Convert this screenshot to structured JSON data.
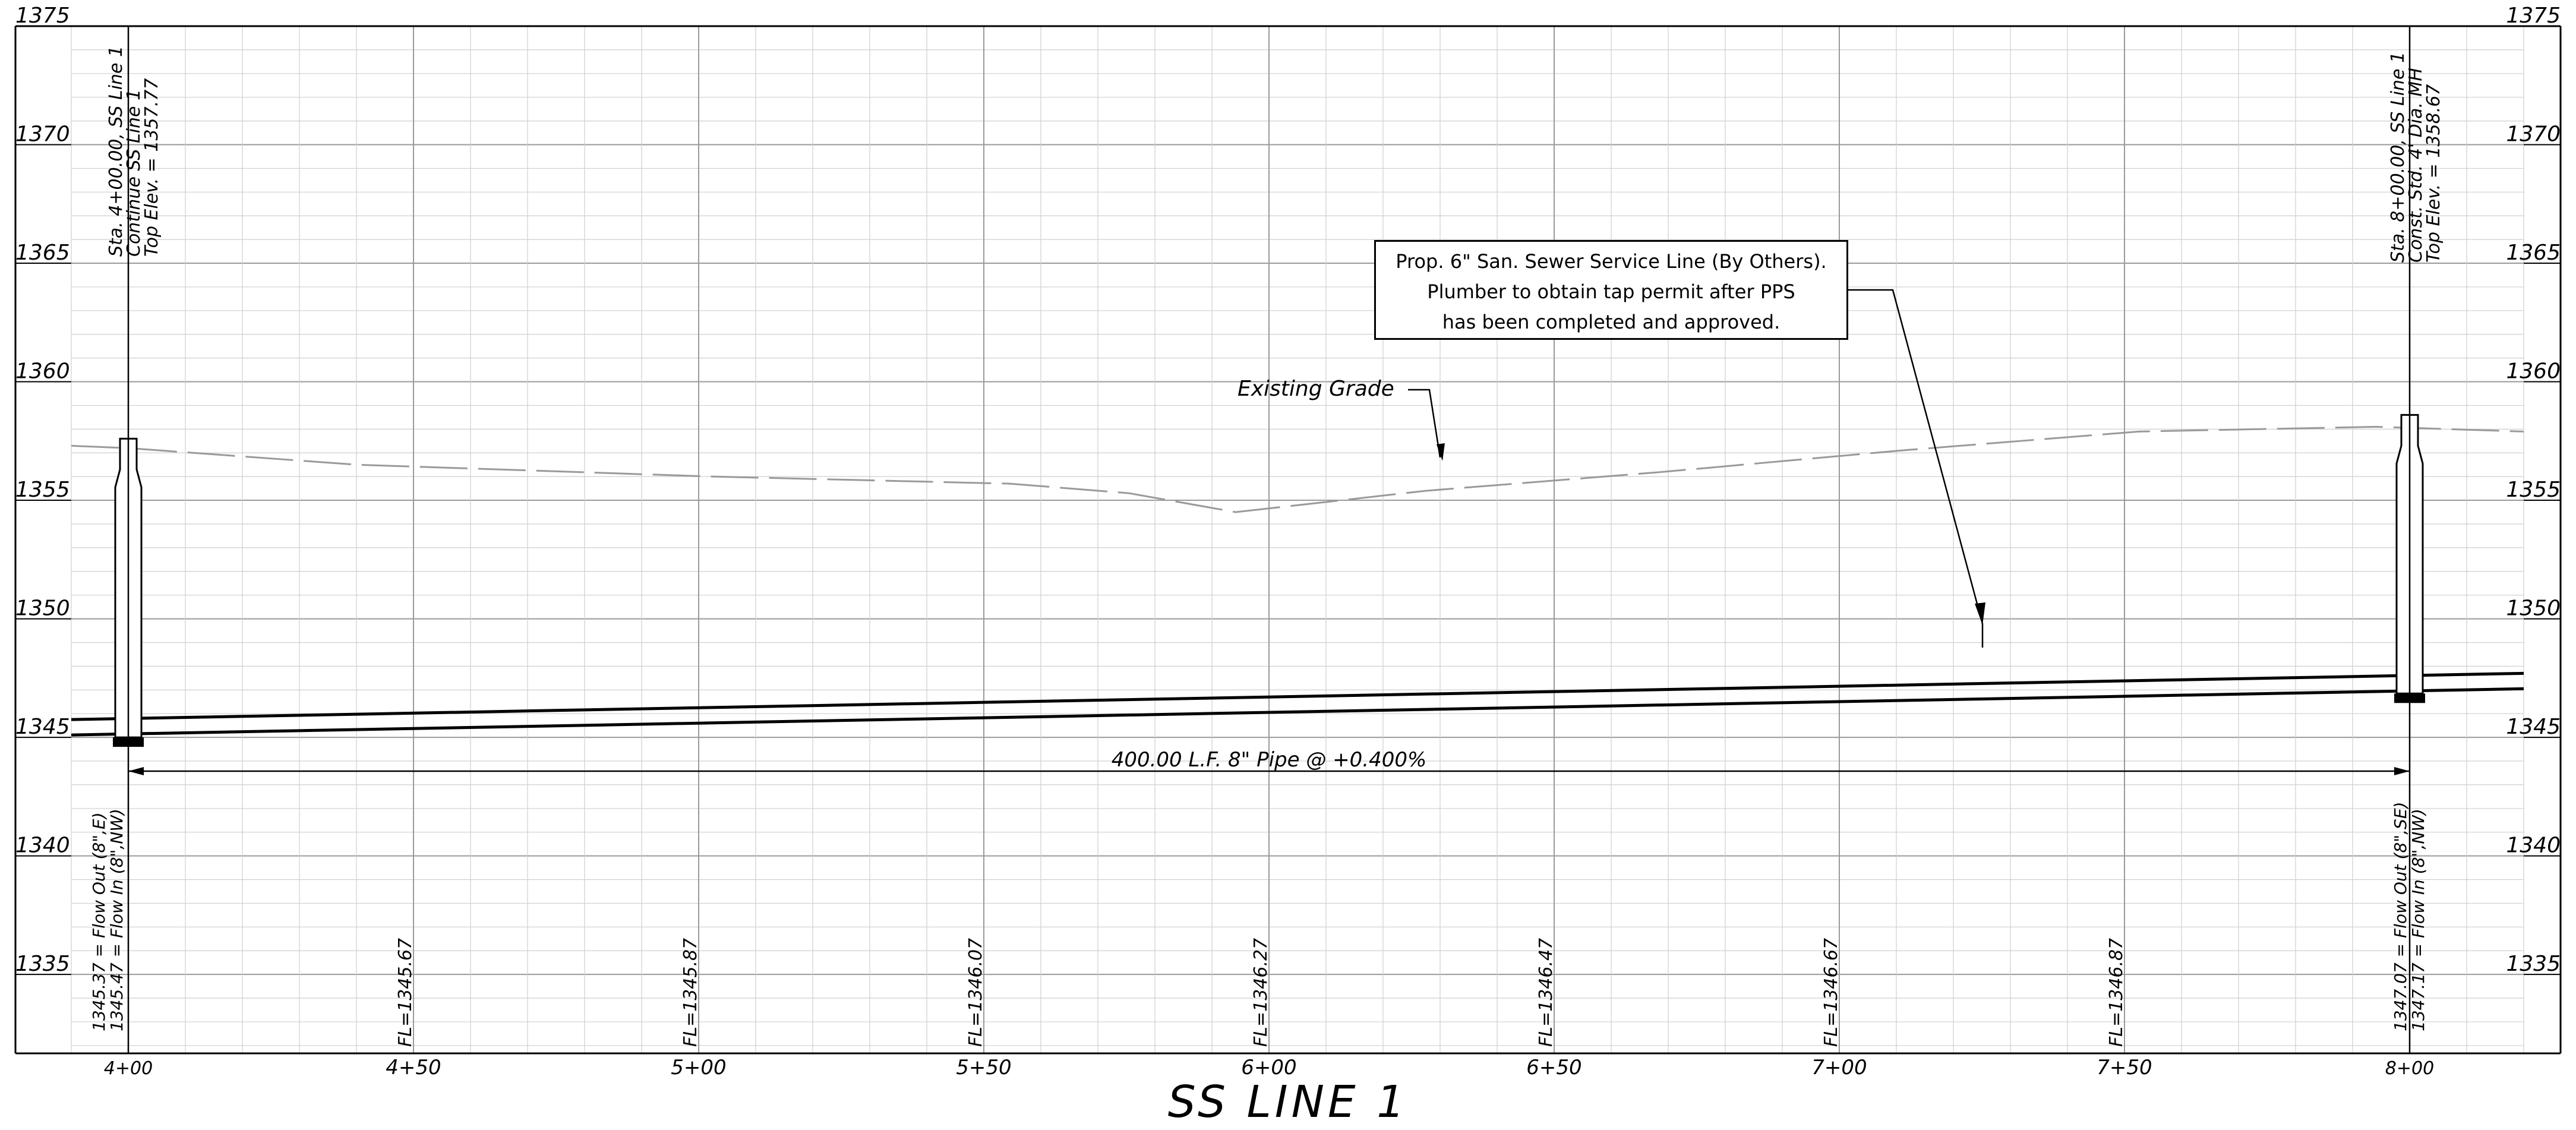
{
  "drawing": {
    "title": "SS LINE 1",
    "elevation_labels": [
      "1375",
      "1370",
      "1365",
      "1360",
      "1355",
      "1350",
      "1345",
      "1340",
      "1335"
    ],
    "station_labels": [
      "4+00",
      "4+50",
      "5+00",
      "5+50",
      "6+00",
      "6+50",
      "7+00",
      "7+50",
      "8+00"
    ],
    "flowline_labels": [
      "FL=1345.67",
      "FL=1345.87",
      "FL=1346.07",
      "FL=1346.27",
      "FL=1346.47",
      "FL=1346.67",
      "FL=1346.87"
    ],
    "left_structure": {
      "top_notes": [
        "Sta. 4+00.00, SS Line 1",
        "Continue SS Line 1",
        "Top Elev. = 1357.77"
      ],
      "bottom_notes": [
        "1345.37 = Flow Out (8\",E)",
        "1345.47 = Flow In (8\",NW)"
      ]
    },
    "right_structure": {
      "top_notes": [
        "Sta. 8+00.00, SS Line 1",
        "Const. Std. 4' Dia. MH",
        "Top Elev. = 1358.67"
      ],
      "bottom_notes": [
        "1347.07 = Flow Out (8\",SE)",
        "1347.17 = Flow In (8\",NW)"
      ]
    },
    "existing_grade_label": "Existing Grade",
    "pipe_label": "400.00 L.F. 8\" Pipe @ +0.400%",
    "callout_note": [
      "Prop. 6\" San. Sewer Service Line (By Others).",
      "Plumber to obtain tap permit after PPS",
      "has been completed and approved."
    ],
    "colors": {
      "linework": "#000000",
      "grid_major": "#9a9a9a",
      "grid_minor": "#cfcfcf",
      "grade_line": "#9a9a9a"
    }
  }
}
